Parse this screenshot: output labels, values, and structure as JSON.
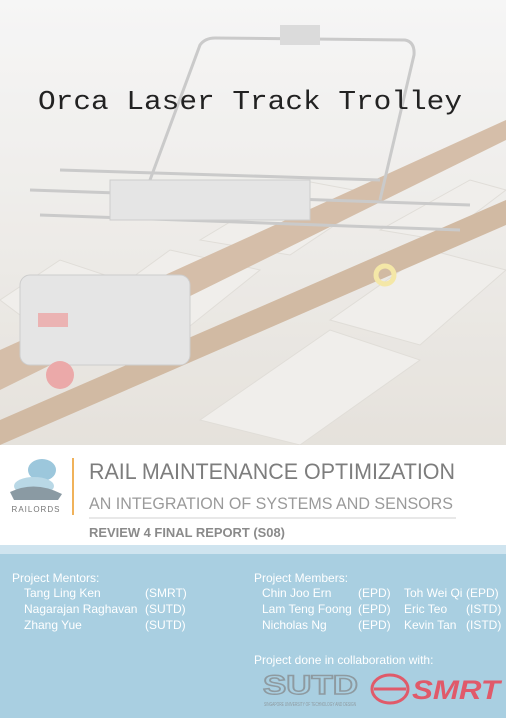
{
  "cover": {
    "title": "Orca Laser Track Trolley"
  },
  "banner": {
    "logo_text": "RAILORDS",
    "heading": "RAIL MAINTENANCE OPTIMIZATION",
    "subheading": "AN INTEGRATION OF SYSTEMS AND SENSORS",
    "report": "REVIEW 4 FINAL REPORT (S08)"
  },
  "mentors": {
    "label": "Project Mentors:",
    "people": [
      {
        "name": "Tang Ling Ken",
        "org": "(SMRT)"
      },
      {
        "name": "Nagarajan Raghavan",
        "org": "(SUTD)"
      },
      {
        "name": "Zhang Yue",
        "org": "(SUTD)"
      }
    ]
  },
  "members": {
    "label": "Project Members:",
    "people": [
      {
        "name": "Chin Joo Ern",
        "org": "(EPD)"
      },
      {
        "name": "Lam Teng Foong",
        "org": "(EPD)"
      },
      {
        "name": "Nicholas Ng",
        "org": "(EPD)"
      },
      {
        "name": "Toh Wei Qi",
        "org": "(EPD)"
      },
      {
        "name": "Eric Teo",
        "org": "(ISTD)"
      },
      {
        "name": "Kevin Tan",
        "org": "(ISTD)"
      }
    ]
  },
  "collaboration": {
    "label": "Project done in collaboration with:",
    "partners": [
      "SUTD",
      "SINGAPORE UNIVERSITY OF TECHNOLOGY AND DESIGN",
      "SMRT"
    ]
  }
}
